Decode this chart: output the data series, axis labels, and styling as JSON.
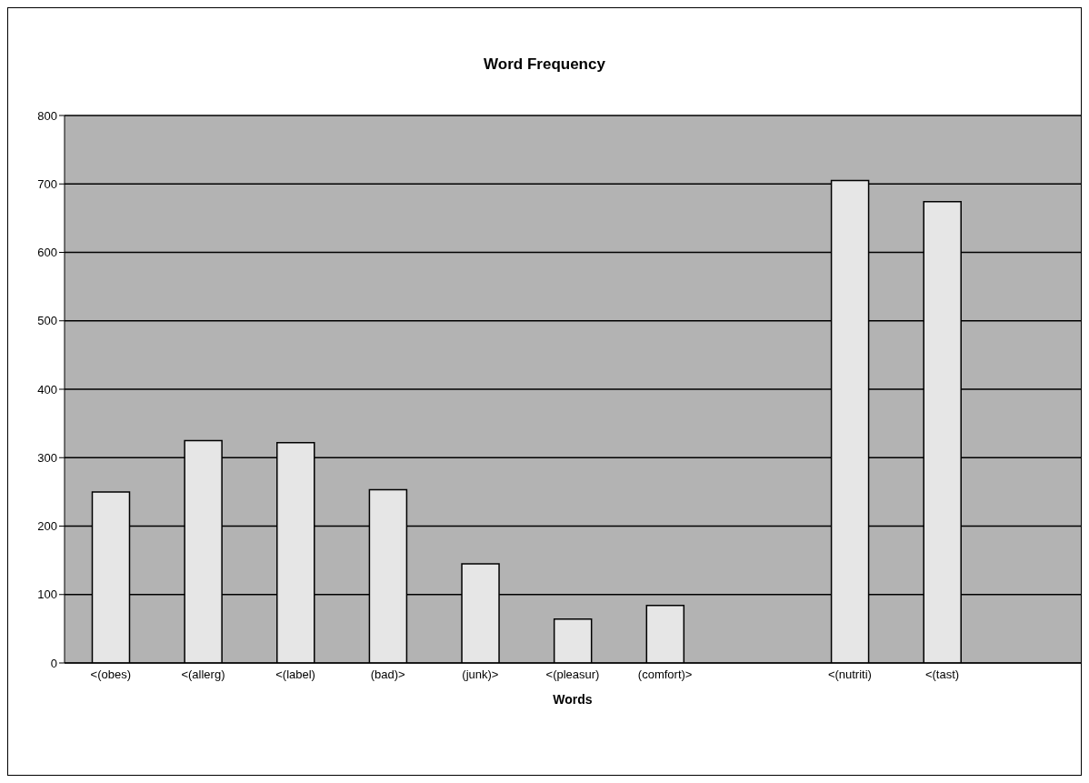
{
  "chart_data": {
    "type": "bar",
    "title": "Word Frequency",
    "xlabel": "Words",
    "categories": [
      "<(obes)",
      "<(allerg)",
      "<(label)",
      "(bad)>",
      "(junk)>",
      "<(pleasur)",
      "(comfort)>",
      null,
      "<(nutriti)",
      "<(tast)",
      null
    ],
    "values": [
      250,
      325,
      322,
      253,
      145,
      64,
      84,
      null,
      705,
      674,
      null
    ],
    "color": "#e6e6e6",
    "ylim": [
      0,
      800
    ],
    "yticks": [
      0,
      100,
      200,
      300,
      400,
      500,
      600,
      700,
      800
    ],
    "grid": "y"
  }
}
